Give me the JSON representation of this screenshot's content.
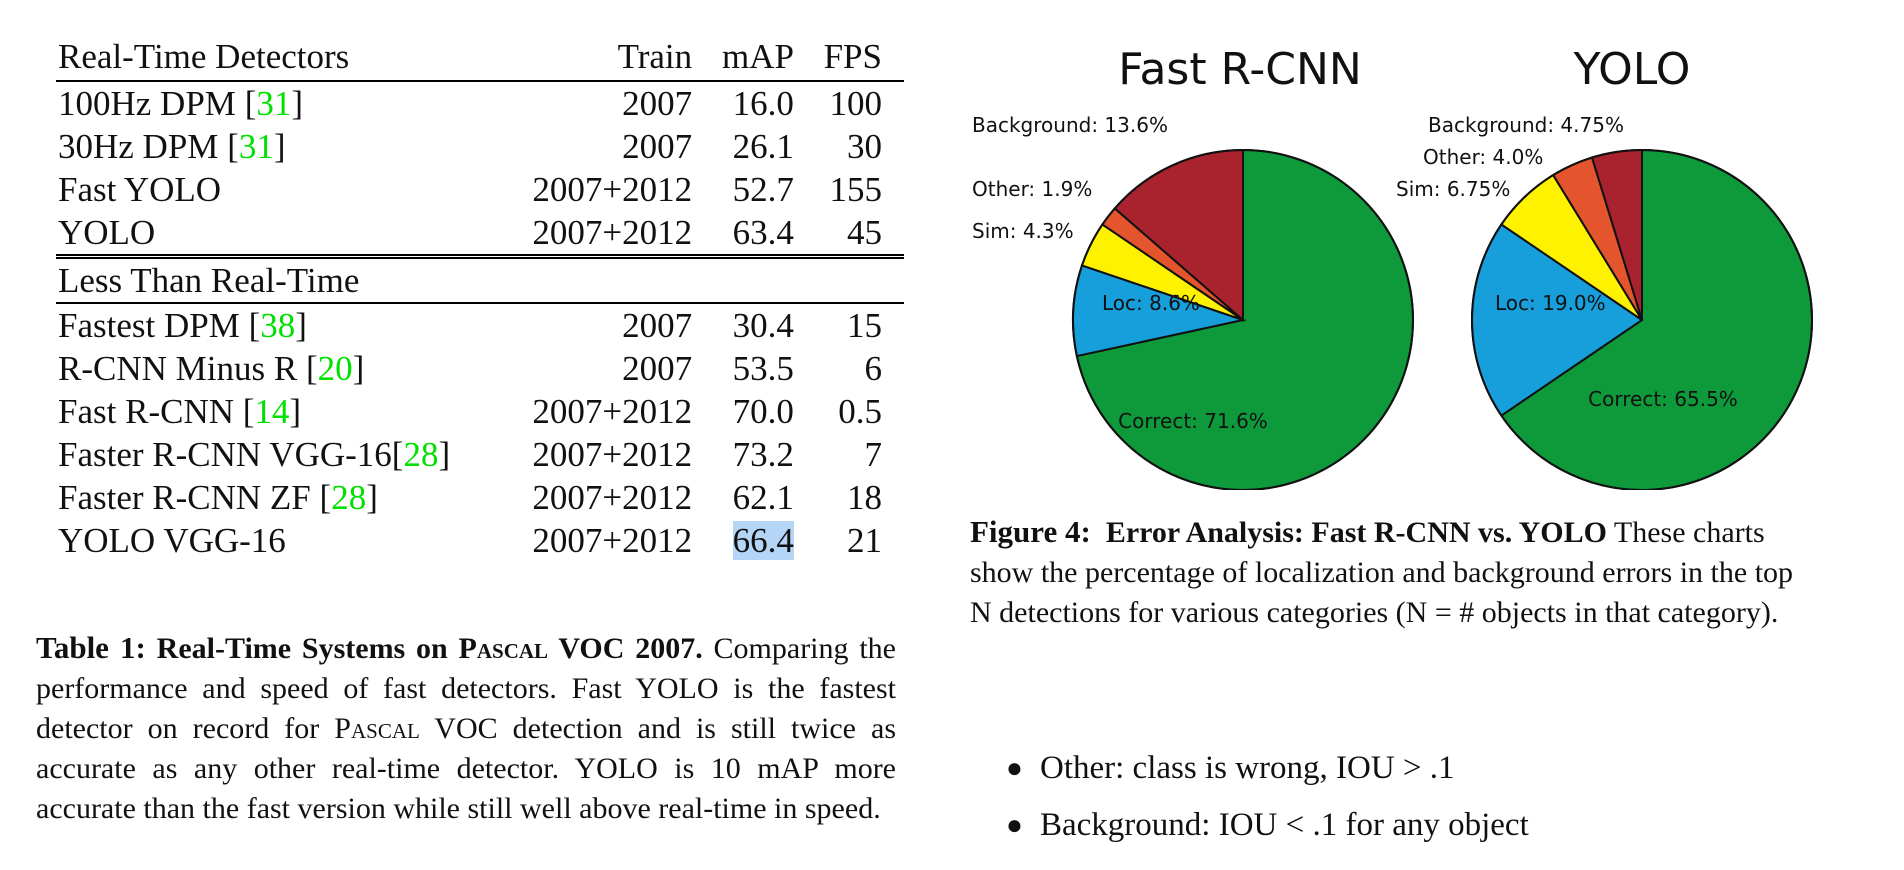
{
  "table": {
    "headers": [
      "Real-Time Detectors",
      "Train",
      "mAP",
      "FPS"
    ],
    "realtime_rows": [
      {
        "name": "100Hz DPM ",
        "ref": "31",
        "train": "2007",
        "map": "16.0",
        "fps": "100"
      },
      {
        "name": "30Hz DPM ",
        "ref": "31",
        "train": "2007",
        "map": "26.1",
        "fps": "30"
      },
      {
        "name": "Fast YOLO",
        "ref": "",
        "train": "2007+2012",
        "map": "52.7",
        "fps": "155"
      },
      {
        "name": "YOLO",
        "ref": "",
        "train": "2007+2012",
        "map": "63.4",
        "fps": "45"
      }
    ],
    "section2_title": "Less Than Real-Time",
    "slow_rows": [
      {
        "name": "Fastest DPM ",
        "ref": "38",
        "train": "2007",
        "map": "30.4",
        "fps": "15"
      },
      {
        "name": "R-CNN Minus R ",
        "ref": "20",
        "train": "2007",
        "map": "53.5",
        "fps": "6"
      },
      {
        "name": "Fast R-CNN ",
        "ref": "14",
        "train": "2007+2012",
        "map": "70.0",
        "fps": "0.5"
      },
      {
        "name": "Faster R-CNN VGG-16",
        "ref": "28",
        "train": "2007+2012",
        "map": "73.2",
        "fps": "7"
      },
      {
        "name": "Faster R-CNN ZF ",
        "ref": "28",
        "train": "2007+2012",
        "map": "62.1",
        "fps": "18"
      },
      {
        "name": "YOLO VGG-16",
        "ref": "",
        "train": "2007+2012",
        "map": "66.4",
        "fps": "21"
      }
    ]
  },
  "table_caption": {
    "label": "Table 1:",
    "title_a": "Real-Time Systems on P",
    "title_sc": "ascal",
    "title_b": " VOC 2007.",
    "text_a": " Comparing the performance and speed of fast detectors.  Fast YOLO is the fastest detector on record for P",
    "text_sc": "ascal",
    "text_b": " VOC detection and is still twice as accurate as any other real-time detector.  YOLO is 10 mAP more accurate than the fast version while still well above real-time in speed."
  },
  "chart_data": [
    {
      "type": "pie",
      "title": "Fast R-CNN",
      "slices": [
        {
          "label": "Correct: 71.6%",
          "value": 71.6,
          "color": "#0e9a3b"
        },
        {
          "label": "Loc: 8.6%",
          "value": 8.6,
          "color": "#169fdb"
        },
        {
          "label": "Sim: 4.3%",
          "value": 4.3,
          "color": "#fff200"
        },
        {
          "label": "Other: 1.9%",
          "value": 1.9,
          "color": "#e4542d"
        },
        {
          "label": "Background: 13.6%",
          "value": 13.6,
          "color": "#a9232f"
        }
      ]
    },
    {
      "type": "pie",
      "title": "YOLO",
      "slices": [
        {
          "label": "Correct: 65.5%",
          "value": 65.5,
          "color": "#0e9a3b"
        },
        {
          "label": "Loc: 19.0%",
          "value": 19.0,
          "color": "#169fdb"
        },
        {
          "label": "Sim: 6.75%",
          "value": 6.75,
          "color": "#fff200"
        },
        {
          "label": "Other: 4.0%",
          "value": 4.0,
          "color": "#e4542d"
        },
        {
          "label": "Background: 4.75%",
          "value": 4.75,
          "color": "#a9232f"
        }
      ]
    }
  ],
  "figure_caption": {
    "label": "Figure 4:",
    "title": "Error Analysis: Fast R-CNN vs.  YOLO",
    "text": " These charts show the percentage of localization and background errors in the top N detections for various categories (N = # objects in that category)."
  },
  "bullets": [
    "Other: class is wrong, IOU > .1",
    "Background: IOU < .1 for any object"
  ]
}
